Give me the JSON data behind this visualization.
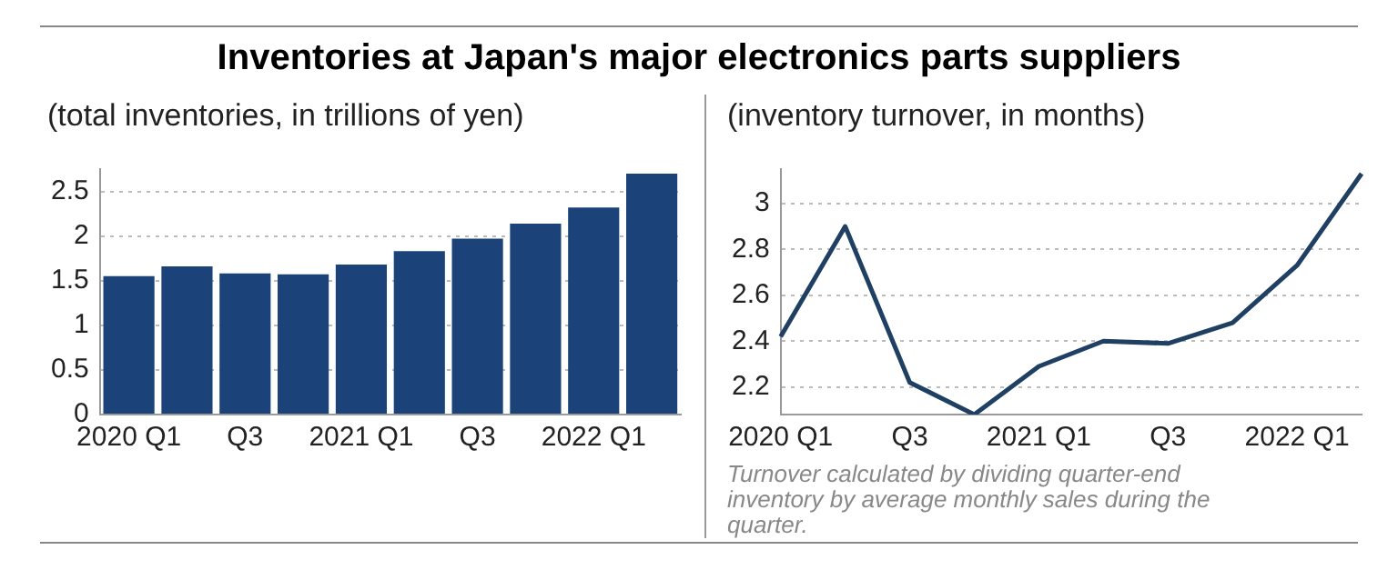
{
  "chart_data": [
    {
      "type": "bar",
      "title": "Inventories at Japan's major electronics parts suppliers",
      "subtitle": "(total inventories, in trillions of yen)",
      "categories": [
        "2020 Q1",
        null,
        "Q3",
        null,
        "2021 Q1",
        null,
        "Q3",
        null,
        "2022 Q1",
        null
      ],
      "values": [
        1.55,
        1.66,
        1.58,
        1.57,
        1.68,
        1.83,
        1.97,
        2.14,
        2.32,
        2.7
      ],
      "color": "#1b4379",
      "ylim": [
        0,
        2.75
      ],
      "yticks": [
        0,
        0.5,
        1,
        1.5,
        2,
        2.5
      ],
      "grid": "y",
      "legend": false
    },
    {
      "type": "line",
      "subtitle": "(inventory turnover, in months)",
      "categories": [
        "2020 Q1",
        null,
        "Q3",
        null,
        "2021 Q1",
        null,
        "Q3",
        null,
        "2022 Q1",
        null
      ],
      "values": [
        2.42,
        2.9,
        2.22,
        2.08,
        2.29,
        2.4,
        2.39,
        2.48,
        2.73,
        3.13
      ],
      "color": "#1f3f63",
      "ylim": [
        2.08,
        3.15
      ],
      "yticks": [
        2.2,
        2.4,
        2.6,
        2.8,
        3
      ],
      "grid": "y",
      "legend": false,
      "marker": "none",
      "line_style": "solid",
      "annotations": [
        "Turnover calculated by dividing quarter-end inventory by average monthly sales during the quarter."
      ]
    }
  ]
}
